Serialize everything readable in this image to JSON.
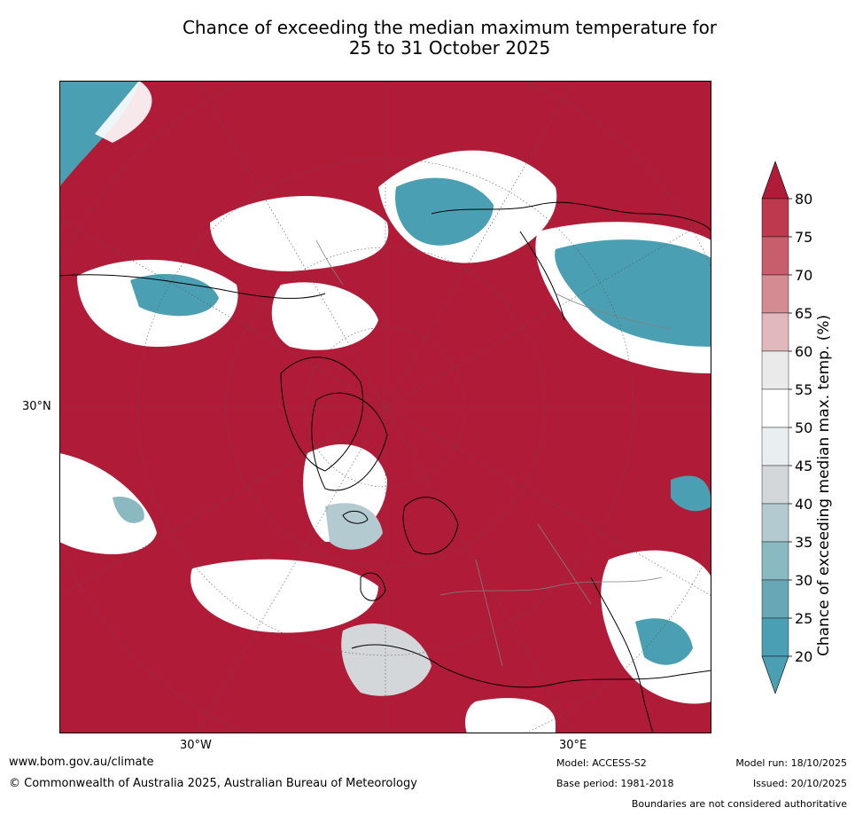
{
  "title": {
    "line1": "Chance of exceeding the median maximum temperature for",
    "line2": "25 to 31 October 2025"
  },
  "map": {
    "projection": "north-polar-stereographic",
    "background_color": "#b01c37",
    "lat_labels": [
      {
        "text": "30°N"
      }
    ],
    "lon_labels": [
      {
        "text": "30°W"
      },
      {
        "text": "30°E"
      }
    ]
  },
  "colorbar": {
    "label": "Chance of exceeding median max. temp. (%)",
    "ticks": [
      "80",
      "75",
      "70",
      "65",
      "60",
      "55",
      "50",
      "45",
      "40",
      "35",
      "30",
      "25",
      "20"
    ],
    "colors": [
      "#b01c37",
      "#bd3a4e",
      "#c75e6b",
      "#d48b92",
      "#e1b8bb",
      "#ebeaea",
      "#ffffff",
      "#e9eef1",
      "#d3d7da",
      "#b3cbd0",
      "#8ab9c2",
      "#68a8b6",
      "#4aa0b2"
    ],
    "top_arrow_color": "#b01c37",
    "bottom_arrow_color": "#4aa0b2"
  },
  "footer": {
    "website": "www.bom.gov.au/climate",
    "copyright": "© Commonwealth of Australia 2025, Australian Bureau of Meteorology",
    "model": "Model: ACCESS-S2",
    "base_period": "Base period: 1981-2018",
    "model_run": "Model run: 18/10/2025",
    "issued": "Issued: 20/10/2025",
    "disclaimer": "Boundaries are not considered authoritative"
  }
}
